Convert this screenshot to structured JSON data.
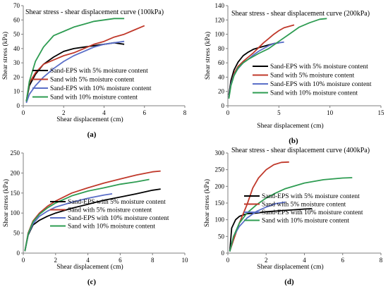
{
  "chart_data": [
    {
      "type": "line",
      "caption": "(a)",
      "title": "Shear stress - shear displacement curve  (100kPa)",
      "xlabel": "Shear displacement (cm)",
      "ylabel": "Shear stress (kPa)",
      "xlim": [
        0,
        8
      ],
      "ylim": [
        0,
        70
      ],
      "xticks": [
        0,
        2,
        4,
        6,
        8
      ],
      "yticks": [
        0,
        10,
        20,
        30,
        40,
        50,
        60,
        70
      ],
      "legend_position": "bottom-right",
      "series": [
        {
          "name": "Sand-EPS with 5% moisture content",
          "color": "#000000",
          "x": [
            0.15,
            0.3,
            0.6,
            1.0,
            1.5,
            2.0,
            2.5,
            3.0,
            3.5,
            4.0,
            4.5,
            5.0
          ],
          "y": [
            3,
            14,
            22,
            29,
            34,
            38,
            40,
            41,
            42,
            43,
            44,
            43
          ]
        },
        {
          "name": "Sand with 5% moisture content",
          "color": "#c0392b",
          "x": [
            0.15,
            0.3,
            0.6,
            1.0,
            1.5,
            2.0,
            2.5,
            3.0,
            3.5,
            4.0,
            4.5,
            5.0,
            5.5,
            6.0
          ],
          "y": [
            3,
            16,
            23,
            29,
            32,
            35,
            37,
            40,
            43,
            45,
            48,
            50,
            53,
            56
          ]
        },
        {
          "name": "Sand-EPS with 10% moisture content",
          "color": "#5b6fc8",
          "x": [
            0.15,
            0.3,
            0.6,
            1.0,
            1.5,
            2.0,
            2.5,
            3.0,
            3.5,
            4.0,
            4.5,
            5.0
          ],
          "y": [
            2,
            8,
            14,
            20,
            26,
            31,
            35,
            38,
            41,
            43,
            44,
            45
          ]
        },
        {
          "name": "Sand with 10% moisture content",
          "color": "#2e9c52",
          "x": [
            0.15,
            0.3,
            0.6,
            1.0,
            1.5,
            2.0,
            2.5,
            3.0,
            3.5,
            4.0,
            4.5,
            5.0
          ],
          "y": [
            3,
            17,
            31,
            41,
            49,
            52,
            55,
            57,
            59,
            60,
            61,
            61
          ]
        }
      ]
    },
    {
      "type": "line",
      "caption": "(b)",
      "title": "Shear stress - shear displacement curve  (200kPa)",
      "xlabel": "Shear displacement (cm)",
      "ylabel": "Shear stress (kPa)",
      "xlim": [
        0,
        15
      ],
      "ylim": [
        0,
        140
      ],
      "xticks": [
        0,
        5,
        10,
        15
      ],
      "yticks": [
        0,
        20,
        40,
        60,
        80,
        100,
        120,
        140
      ],
      "legend_position": "bottom-right",
      "series": [
        {
          "name": "Sand-EPS with 5% moisture content",
          "color": "#000000",
          "x": [
            0.1,
            0.3,
            0.6,
            1.0,
            1.5,
            2.0,
            2.5,
            3.0,
            3.5,
            4.0,
            4.5,
            5.0
          ],
          "y": [
            15,
            35,
            50,
            61,
            70,
            75,
            79,
            81,
            83,
            85,
            87,
            88
          ]
        },
        {
          "name": "Sand with 5% moisture content",
          "color": "#c0392b",
          "x": [
            0.1,
            0.3,
            0.6,
            1.0,
            1.5,
            2.0,
            2.5,
            3.0,
            3.5,
            4.0,
            4.5,
            5.0,
            5.5,
            6.0,
            6.5
          ],
          "y": [
            12,
            30,
            45,
            55,
            62,
            68,
            74,
            81,
            88,
            94,
            100,
            105,
            109,
            111,
            113
          ]
        },
        {
          "name": "Sand-EPS with 10% moisture content",
          "color": "#5b6fc8",
          "x": [
            0.1,
            0.3,
            0.6,
            1.0,
            1.5,
            2.0,
            2.5,
            3.0,
            3.5,
            4.0,
            4.5,
            5.0,
            5.5
          ],
          "y": [
            12,
            30,
            43,
            52,
            60,
            65,
            71,
            76,
            80,
            84,
            87,
            88,
            89
          ]
        },
        {
          "name": "Sand with 10% moisture content",
          "color": "#2e9c52",
          "x": [
            0.1,
            0.3,
            0.6,
            1.0,
            1.5,
            2.0,
            3.0,
            4.0,
            5.0,
            6.0,
            7.0,
            8.0,
            9.0,
            9.7
          ],
          "y": [
            10,
            28,
            42,
            53,
            60,
            65,
            73,
            80,
            90,
            100,
            110,
            116,
            121,
            122
          ]
        }
      ]
    },
    {
      "type": "line",
      "caption": "(c)",
      "title": "",
      "xlabel": "Shear displacement (cm)",
      "ylabel": "Shear stress (kPa)",
      "xlim": [
        0,
        10
      ],
      "ylim": [
        0,
        250
      ],
      "xticks": [
        0,
        2,
        4,
        6,
        8,
        10
      ],
      "yticks": [
        0,
        50,
        100,
        150,
        200,
        250
      ],
      "legend_position": "bottom-right",
      "series": [
        {
          "name": "Sand-EPS with 5% moisture content",
          "color": "#000000",
          "x": [
            0.1,
            0.3,
            0.6,
            1.0,
            1.5,
            2.0,
            3.0,
            4.0,
            5.0,
            6.0,
            7.0,
            8.0,
            8.5
          ],
          "y": [
            5,
            45,
            70,
            82,
            92,
            100,
            112,
            122,
            132,
            140,
            148,
            157,
            160
          ]
        },
        {
          "name": "Sand with 5% moisture content",
          "color": "#c0392b",
          "x": [
            0.1,
            0.3,
            0.6,
            1.0,
            1.5,
            2.0,
            3.0,
            4.0,
            5.0,
            6.0,
            7.0,
            8.0,
            8.5
          ],
          "y": [
            5,
            50,
            80,
            100,
            117,
            130,
            150,
            163,
            175,
            185,
            195,
            203,
            205
          ]
        },
        {
          "name": "Sand-EPS with 10% moisture content",
          "color": "#5b6fc8",
          "x": [
            0.1,
            0.3,
            0.6,
            1.0,
            1.5,
            2.0,
            3.0,
            4.0,
            5.0,
            5.5
          ],
          "y": [
            5,
            47,
            73,
            92,
            105,
            115,
            127,
            137,
            145,
            148
          ]
        },
        {
          "name": "Sand with 10% moisture content",
          "color": "#2e9c52",
          "x": [
            0.1,
            0.3,
            0.6,
            1.0,
            1.5,
            2.0,
            3.0,
            4.0,
            5.0,
            6.0,
            7.0,
            7.8
          ],
          "y": [
            5,
            48,
            78,
            97,
            113,
            125,
            143,
            155,
            163,
            172,
            178,
            184
          ]
        }
      ]
    },
    {
      "type": "line",
      "caption": "(d)",
      "title": "Shear stress - shear displacement curve  (400kPa)",
      "xlabel": "Shear displacement (cm)",
      "ylabel": "Shear stress (kPa)",
      "xlim": [
        0,
        8
      ],
      "ylim": [
        0,
        300
      ],
      "xticks": [
        0,
        2,
        4,
        6,
        8
      ],
      "yticks": [
        0,
        50,
        100,
        150,
        200,
        250,
        300
      ],
      "legend_position": "bottom-right",
      "series": [
        {
          "name": "Sand-EPS with 5% moisture content",
          "color": "#000000",
          "x": [
            0.1,
            0.2,
            0.4,
            0.6,
            1.0,
            1.5,
            2.0,
            2.5,
            3.0,
            3.5,
            4.0,
            4.4
          ],
          "y": [
            5,
            75,
            100,
            110,
            118,
            120,
            124,
            126,
            128,
            130,
            132,
            133
          ]
        },
        {
          "name": "Sand with 5% moisture content",
          "color": "#c0392b",
          "x": [
            0.1,
            0.3,
            0.6,
            1.0,
            1.3,
            1.6,
            2.0,
            2.4,
            2.8,
            3.2
          ],
          "y": [
            5,
            40,
            90,
            145,
            195,
            225,
            250,
            265,
            272,
            273
          ]
        },
        {
          "name": "Sand-EPS with 10% moisture content",
          "color": "#5b6fc8",
          "x": [
            0.1,
            0.3,
            0.6,
            1.0,
            1.5,
            2.0,
            2.5,
            3.0
          ],
          "y": [
            5,
            50,
            80,
            105,
            125,
            138,
            148,
            153
          ]
        },
        {
          "name": "Sand with 10% moisture content",
          "color": "#2e9c52",
          "x": [
            0.1,
            0.3,
            0.6,
            1.0,
            1.5,
            2.0,
            2.5,
            3.0,
            4.0,
            5.0,
            6.0,
            6.5
          ],
          "y": [
            5,
            50,
            90,
            120,
            145,
            165,
            180,
            193,
            210,
            220,
            225,
            226
          ]
        }
      ]
    }
  ]
}
